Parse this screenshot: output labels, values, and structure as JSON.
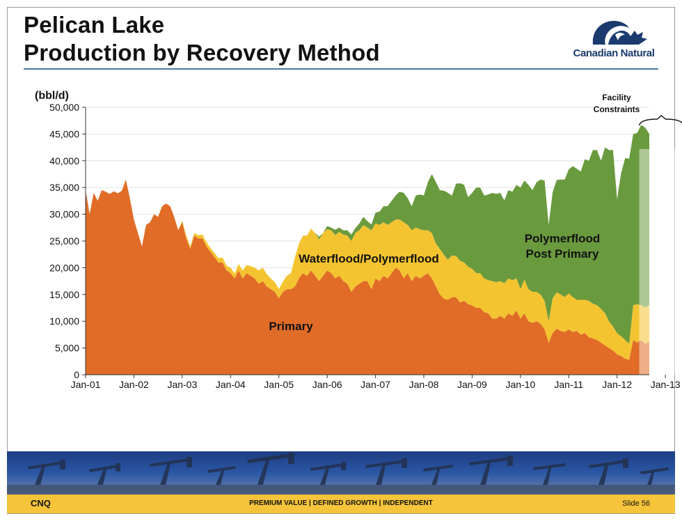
{
  "header": {
    "title_line1": "Pelican Lake",
    "title_line2": "Production by Recovery Method",
    "logo_text": "Canadian Natural"
  },
  "footer": {
    "left": "CNQ",
    "center": "PREMIUM VALUE  |  DEFINED GROWTH  |  INDEPENDENT",
    "right": "Slide 56"
  },
  "colors": {
    "primary": "#e06c27",
    "waterflood": "#f4c430",
    "polymerflood": "#6a9a3e",
    "accent_rule": "#4a79a8",
    "footer_bar": "#f5c43a"
  },
  "chart_data": {
    "type": "area",
    "stacked": true,
    "ylabel": "(bbl/d)",
    "ylim": [
      0,
      50000
    ],
    "yticks": [
      "0",
      "5,000",
      "10,000",
      "15,000",
      "20,000",
      "25,000",
      "30,000",
      "35,000",
      "40,000",
      "45,000",
      "50,000"
    ],
    "xticks": [
      "Jan-01",
      "Jan-02",
      "Jan-03",
      "Jan-04",
      "Jan-05",
      "Jan-06",
      "Jan-07",
      "Jan-08",
      "Jan-09",
      "Jan-10",
      "Jan-11",
      "Jan-12",
      "Jan-13"
    ],
    "grid": true,
    "x_start": "Jan-01",
    "x_interval": "month",
    "series": [
      {
        "name": "Primary",
        "color": "#e06c27",
        "values": [
          34500,
          30000,
          34000,
          32500,
          34500,
          34200,
          33800,
          34300,
          33900,
          34400,
          36500,
          33000,
          29000,
          26500,
          24000,
          28000,
          28500,
          30000,
          29500,
          31500,
          32000,
          31500,
          29500,
          27000,
          28500,
          25500,
          23500,
          26000,
          25500,
          25500,
          24000,
          23000,
          22000,
          21000,
          21000,
          19500,
          19000,
          18000,
          19500,
          18000,
          19000,
          18500,
          18000,
          17000,
          17500,
          16500,
          16000,
          15500,
          14300,
          15500,
          16000,
          16000,
          16500,
          18000,
          19000,
          18500,
          19500,
          18500,
          17500,
          18500,
          19500,
          19000,
          18000,
          18500,
          17500,
          17000,
          15500,
          16500,
          17000,
          17500,
          17500,
          16000,
          18000,
          17500,
          18500,
          18000,
          19000,
          20000,
          19500,
          18000,
          19000,
          17500,
          18500,
          18000,
          18500,
          19000,
          18000,
          16500,
          15000,
          14200,
          14000,
          14500,
          14500,
          13500,
          13800,
          13200,
          13000,
          12500,
          12500,
          11700,
          11500,
          10500,
          10500,
          11000,
          10500,
          11500,
          11000,
          12000,
          10500,
          11500,
          10000,
          9700,
          10000,
          9500,
          8500,
          6000,
          7800,
          8600,
          8200,
          8000,
          8500,
          8000,
          8200,
          7500,
          7800,
          7000,
          6800,
          6500,
          6000,
          5500,
          5000,
          4500,
          3800,
          3500,
          3000,
          2800,
          6500,
          6000,
          6500,
          5800,
          6200
        ]
      },
      {
        "name": "Waterflood/Polymerflood",
        "color": "#f4c430",
        "values": [
          0,
          0,
          0,
          0,
          0,
          0,
          0,
          0,
          0,
          0,
          0,
          0,
          0,
          0,
          0,
          0,
          0,
          0,
          0,
          0,
          0,
          0,
          0,
          0,
          300,
          500,
          500,
          500,
          600,
          700,
          800,
          700,
          800,
          800,
          900,
          900,
          1000,
          900,
          1200,
          1500,
          1500,
          1800,
          2000,
          2500,
          2500,
          2300,
          2000,
          1800,
          1700,
          1900,
          2500,
          3000,
          5500,
          6500,
          7000,
          7500,
          7800,
          8000,
          7800,
          8000,
          7700,
          8000,
          8100,
          8200,
          8700,
          9000,
          9500,
          10000,
          10000,
          10500,
          10000,
          11000,
          10300,
          10500,
          10000,
          10000,
          9500,
          9000,
          9500,
          10500,
          9000,
          9500,
          9000,
          9200,
          8500,
          8000,
          8500,
          8000,
          8500,
          8200,
          7500,
          7800,
          7700,
          7800,
          7200,
          7000,
          6800,
          6500,
          6500,
          6300,
          6200,
          7000,
          6800,
          6500,
          6600,
          6500,
          6700,
          6000,
          5500,
          6300,
          6000,
          5800,
          5500,
          5500,
          5300,
          4000,
          6500,
          6800,
          6800,
          6500,
          6700,
          6500,
          5800,
          6500,
          6200,
          6800,
          6500,
          6500,
          6300,
          6000,
          5000,
          4500,
          4000,
          3700,
          3500,
          3000,
          6500,
          7200,
          6500,
          6800,
          6800
        ]
      },
      {
        "name": "Polymerflood Post Primary",
        "color": "#6a9a3e",
        "values": [
          0,
          0,
          0,
          0,
          0,
          0,
          0,
          0,
          0,
          0,
          0,
          0,
          0,
          0,
          0,
          0,
          0,
          0,
          0,
          0,
          0,
          0,
          0,
          0,
          0,
          0,
          0,
          0,
          0,
          0,
          0,
          0,
          0,
          0,
          0,
          0,
          0,
          0,
          0,
          0,
          0,
          0,
          0,
          0,
          0,
          0,
          0,
          0,
          0,
          0,
          0,
          0,
          0,
          0,
          0,
          0,
          0,
          0,
          500,
          0,
          600,
          500,
          1000,
          800,
          800,
          1000,
          1200,
          900,
          1300,
          1500,
          1200,
          1100,
          2000,
          2500,
          3000,
          3500,
          4000,
          4500,
          5200,
          5500,
          5000,
          4500,
          6000,
          6500,
          6500,
          9000,
          11000,
          11500,
          11000,
          12000,
          12500,
          11200,
          13500,
          14500,
          14500,
          13000,
          14200,
          16000,
          16000,
          15500,
          16000,
          16500,
          16500,
          16500,
          15500,
          16500,
          16500,
          17500,
          19000,
          18500,
          19500,
          19000,
          20500,
          21500,
          22500,
          18000,
          19800,
          21000,
          21500,
          22000,
          23200,
          24500,
          24500,
          24000,
          26300,
          26200,
          28700,
          29000,
          27700,
          31000,
          32000,
          33000,
          25000,
          30500,
          34000,
          34600,
          32000,
          32000,
          33700,
          33600,
          32000
        ]
      }
    ],
    "annotations": [
      {
        "text": "Primary"
      },
      {
        "text": "Waterflood/Polymerflood"
      },
      {
        "text": "Polymerflood\nPost Primary"
      },
      {
        "text": "Facility\nConstraints"
      }
    ]
  }
}
